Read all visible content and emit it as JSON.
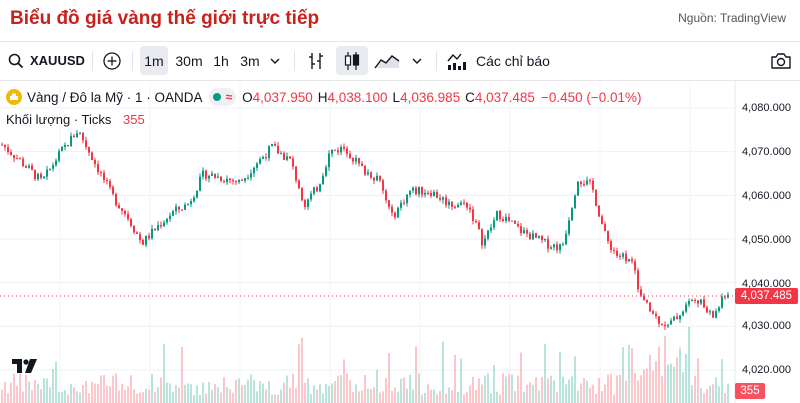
{
  "header": {
    "title": "Biểu đồ giá vàng thế giới trực tiếp",
    "source": "Nguồn: TradingView"
  },
  "toolbar": {
    "symbol": "XAUUSD",
    "intervals": [
      "1m",
      "30m",
      "1h",
      "3m"
    ],
    "active_interval": "1m",
    "indicators_label": "Các chỉ báo"
  },
  "legend": {
    "title": "Vàng / Đô la Mỹ · 1 · OANDA",
    "o_label": "O",
    "o_value": "4,037.950",
    "h_label": "H",
    "h_value": "4,038.100",
    "l_label": "L",
    "l_value": "4,036.985",
    "c_label": "C",
    "c_value": "4,037.485",
    "change": "−0.450 (−0.01%)",
    "volume_label": "Khối lượng · Ticks",
    "volume_value": "355"
  },
  "axis": {
    "ticks": [
      "4,080.000",
      "4,070.000",
      "4,060.000",
      "4,050.000",
      "4,040.000",
      "4,030.000",
      "4,020.000"
    ],
    "last_price": "4,037.485",
    "last_volume": "355"
  },
  "colors": {
    "up": "#089981",
    "down": "#f23645",
    "title": "#c8221c"
  }
}
